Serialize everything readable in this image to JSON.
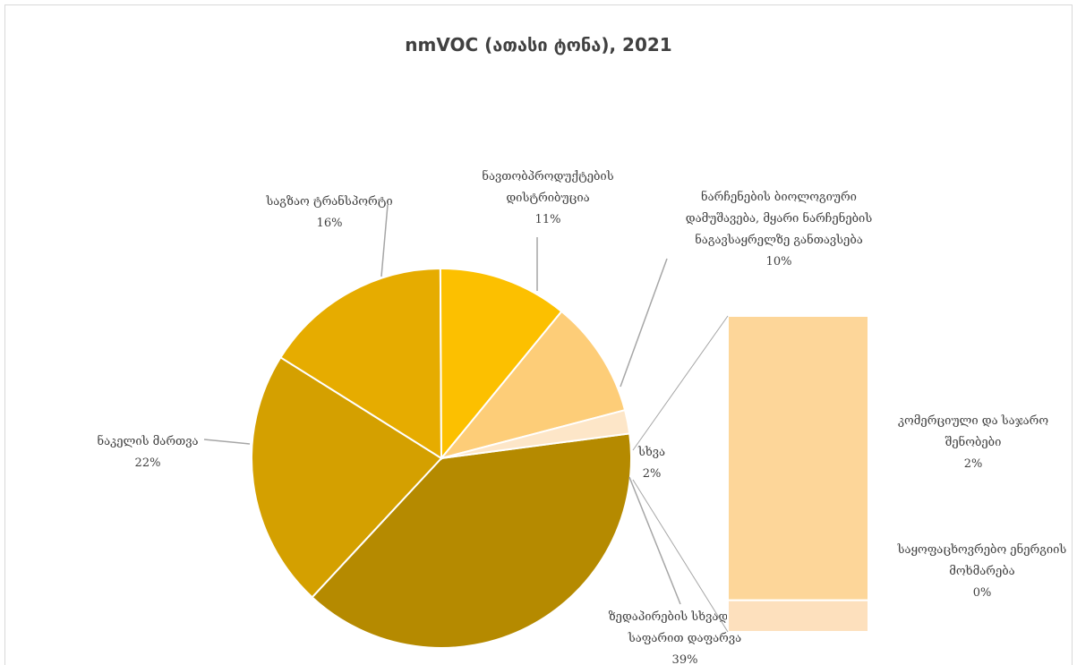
{
  "chart_data": {
    "type": "pie",
    "title": "nmVOC (ათასი ტონა), 2021",
    "slices": [
      {
        "label_lines": [
          "ზედაპირების სხვადასხვა",
          "საფარით დაფარვა"
        ],
        "percent_label": "39%",
        "value": 39,
        "color": "#b58a00"
      },
      {
        "label_lines": [
          "ნაკელის მართვა"
        ],
        "percent_label": "22%",
        "value": 22,
        "color": "#d4a000"
      },
      {
        "label_lines": [
          "საგზაო ტრანსპორტი"
        ],
        "percent_label": "16%",
        "value": 16,
        "color": "#e6ac00"
      },
      {
        "label_lines": [
          "ნავთობპროდუქტების",
          "დისტრიბუცია"
        ],
        "percent_label": "11%",
        "value": 11,
        "color": "#fcc000"
      },
      {
        "label_lines": [
          "ნარჩენების ბიოლოგიური",
          "დამუშავება, მყარი ნარჩენების",
          "ნაგავსაყრელზე განთავსება"
        ],
        "percent_label": "10%",
        "value": 10,
        "color": "#fdcd78"
      },
      {
        "label_lines": [
          "სხვა"
        ],
        "percent_label": "2%",
        "value": 2,
        "color": "#fde6c8"
      }
    ],
    "breakdown": {
      "of_slice": "სხვა",
      "items": [
        {
          "label_lines": [
            "კომერციული და საჯარო",
            "შენობები"
          ],
          "percent_label": "2%",
          "value": 1.8,
          "color": "#fdd699"
        },
        {
          "label_lines": [
            "საყოფაცხოვრებო ენერგიის",
            "მოხმარება"
          ],
          "percent_label": "0%",
          "value": 0.2,
          "color": "#fde0bd"
        }
      ]
    }
  }
}
